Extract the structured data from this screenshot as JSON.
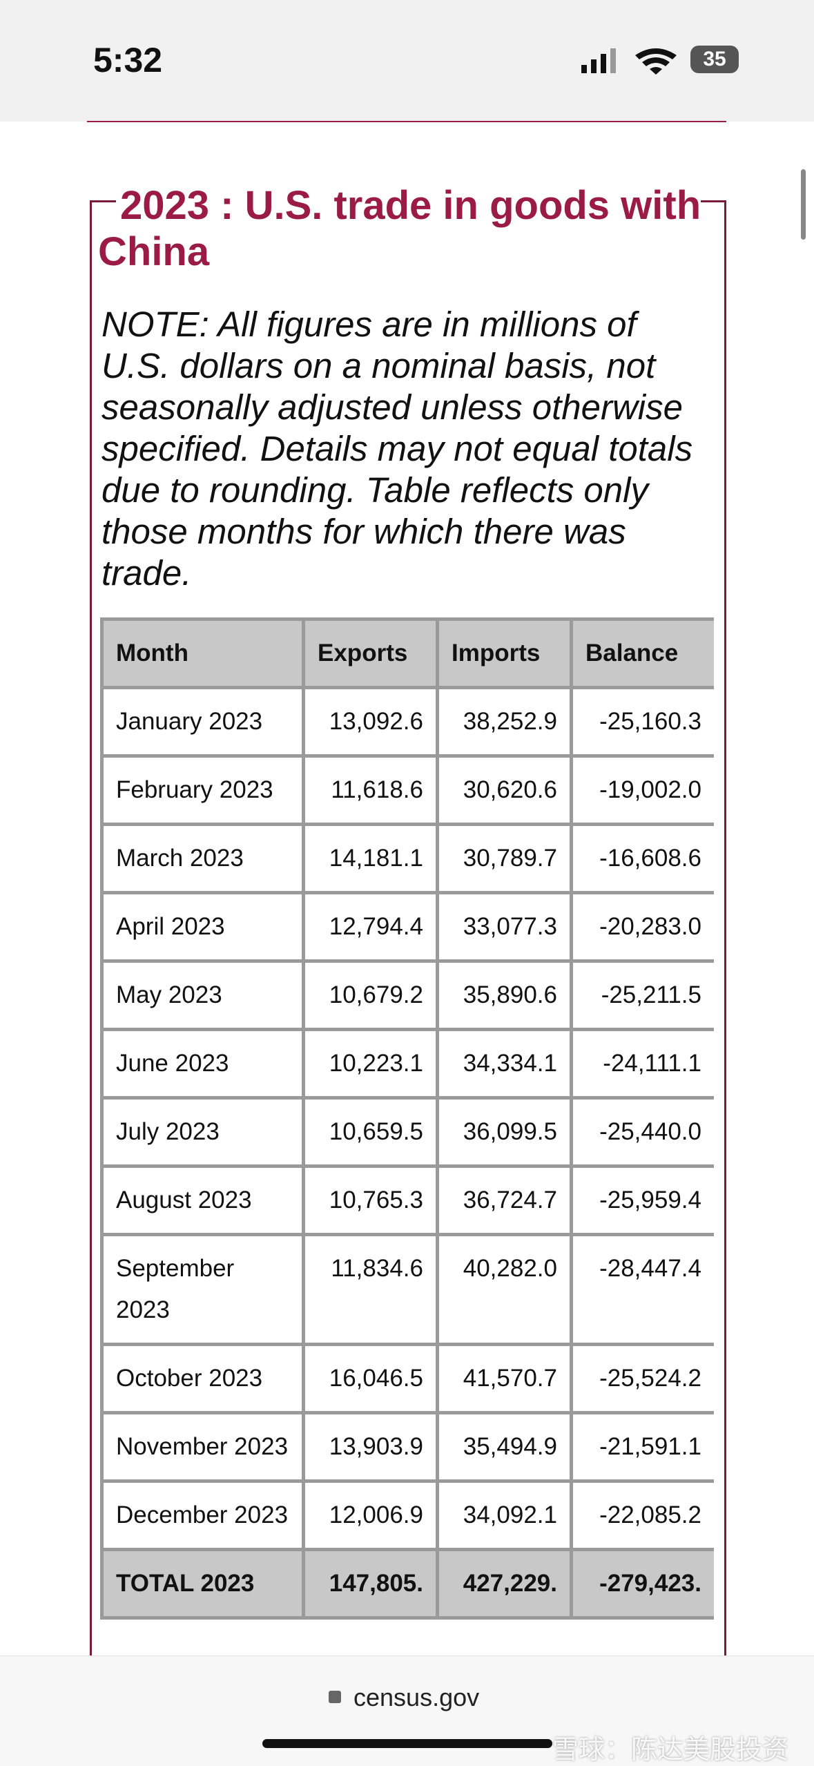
{
  "status_bar": {
    "time": "5:32",
    "battery": "35"
  },
  "section": {
    "title": "2023 : U.S. trade in goods with China",
    "note": "NOTE: All figures are in millions of U.S. dollars on a nominal basis, not seasonally adjusted unless otherwise specified. Details may not equal totals due to rounding. Table reflects only those months for which there was trade."
  },
  "table": {
    "columns": [
      "Month",
      "Exports",
      "Imports",
      "Balance"
    ],
    "rows": [
      [
        "January 2023",
        "13,092.6",
        "38,252.9",
        "-25,160.3"
      ],
      [
        "February 2023",
        "11,618.6",
        "30,620.6",
        "-19,002.0"
      ],
      [
        "March 2023",
        "14,181.1",
        "30,789.7",
        "-16,608.6"
      ],
      [
        "April 2023",
        "12,794.4",
        "33,077.3",
        "-20,283.0"
      ],
      [
        "May 2023",
        "10,679.2",
        "35,890.6",
        "-25,211.5"
      ],
      [
        "June 2023",
        "10,223.1",
        "34,334.1",
        "-24,111.1"
      ],
      [
        "July 2023",
        "10,659.5",
        "36,099.5",
        "-25,440.0"
      ],
      [
        "August 2023",
        "10,765.3",
        "36,724.7",
        "-25,959.4"
      ],
      [
        "September 2023",
        "11,834.6",
        "40,282.0",
        "-28,447.4"
      ],
      [
        "October 2023",
        "16,046.5",
        "41,570.7",
        "-25,524.2"
      ],
      [
        "November 2023",
        "13,903.9",
        "35,494.9",
        "-21,591.1"
      ],
      [
        "December 2023",
        "12,006.9",
        "34,092.1",
        "-22,085.2"
      ]
    ],
    "total": [
      "TOTAL 2023",
      "147,805.",
      "427,229.",
      "-279,423."
    ]
  },
  "browser": {
    "url": "census.gov"
  },
  "watermark": "雪球：陈达美股投资"
}
